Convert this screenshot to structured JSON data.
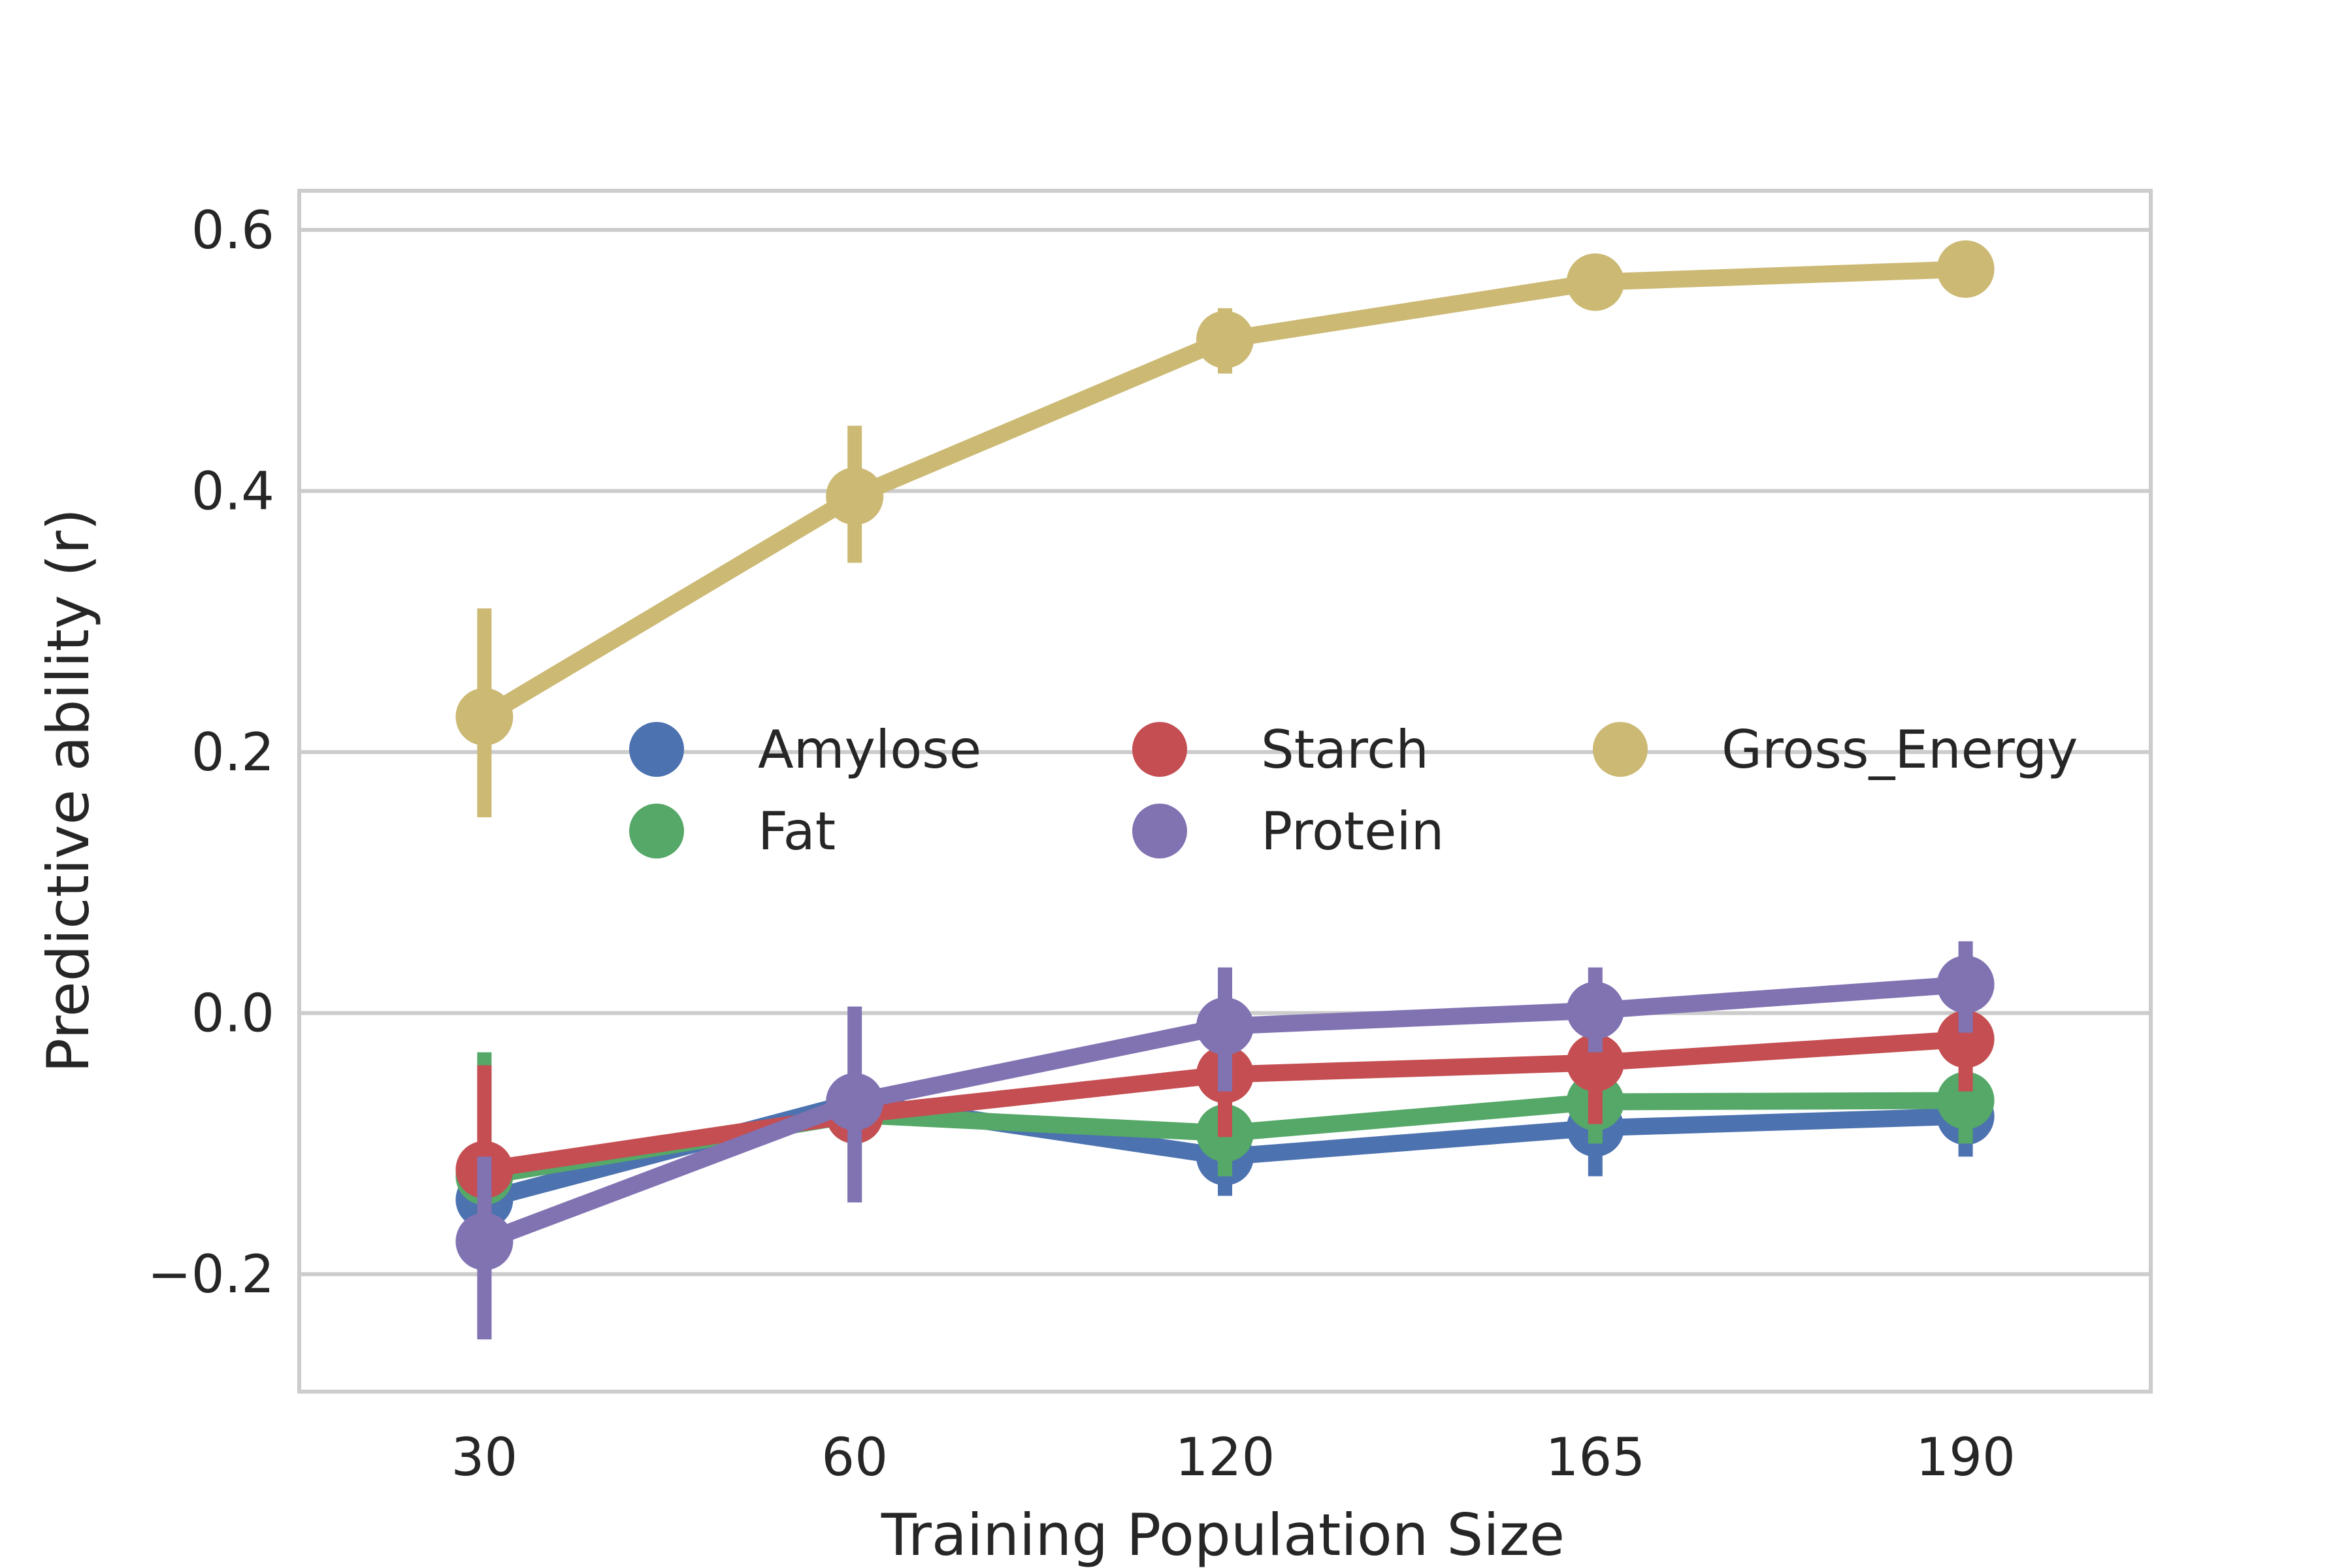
{
  "chart_data": {
    "type": "line",
    "title": "",
    "xlabel": "Training Population Size",
    "ylabel": "Predictive ability (r)",
    "categories": [
      "30",
      "60",
      "120",
      "165",
      "190"
    ],
    "yticks": [
      -0.2,
      0.0,
      0.2,
      0.4,
      0.6
    ],
    "ytick_labels": [
      "−0.2",
      "0.0",
      "0.2",
      "0.4",
      "0.6"
    ],
    "ylim": [
      -0.29,
      0.63
    ],
    "grid": "horizontal",
    "legend_placement": "center",
    "series": [
      {
        "name": "Amylose",
        "color": "#4c72b0",
        "values": [
          -0.143,
          -0.068,
          -0.11,
          -0.088,
          -0.079
        ],
        "lower": [
          -0.165,
          -0.085,
          -0.14,
          -0.125,
          -0.11
        ],
        "upper": [
          -0.105,
          -0.055,
          -0.085,
          -0.06,
          -0.055
        ]
      },
      {
        "name": "Fat",
        "color": "#55a868",
        "values": [
          -0.125,
          -0.078,
          -0.092,
          -0.068,
          -0.067
        ],
        "lower": [
          -0.165,
          -0.145,
          -0.125,
          -0.1,
          -0.1
        ],
        "upper": [
          -0.03,
          -0.06,
          -0.06,
          -0.045,
          -0.045
        ]
      },
      {
        "name": "Starch",
        "color": "#c44e52",
        "values": [
          -0.12,
          -0.078,
          -0.047,
          -0.038,
          -0.02
        ],
        "lower": [
          -0.17,
          -0.095,
          -0.095,
          -0.085,
          -0.06
        ],
        "upper": [
          -0.04,
          -0.055,
          -0.02,
          -0.015,
          0.0
        ]
      },
      {
        "name": "Protein",
        "color": "#8172b2",
        "values": [
          -0.175,
          -0.068,
          -0.01,
          0.002,
          0.022
        ],
        "lower": [
          -0.25,
          -0.145,
          -0.06,
          -0.03,
          -0.015
        ],
        "upper": [
          -0.11,
          0.005,
          0.035,
          0.035,
          0.055
        ]
      },
      {
        "name": "Gross_Energy",
        "color": "#ccb974",
        "values": [
          0.227,
          0.396,
          0.516,
          0.56,
          0.57
        ],
        "lower": [
          0.15,
          0.345,
          0.49,
          0.545,
          0.56
        ],
        "upper": [
          0.31,
          0.45,
          0.54,
          0.578,
          0.582
        ]
      }
    ]
  }
}
